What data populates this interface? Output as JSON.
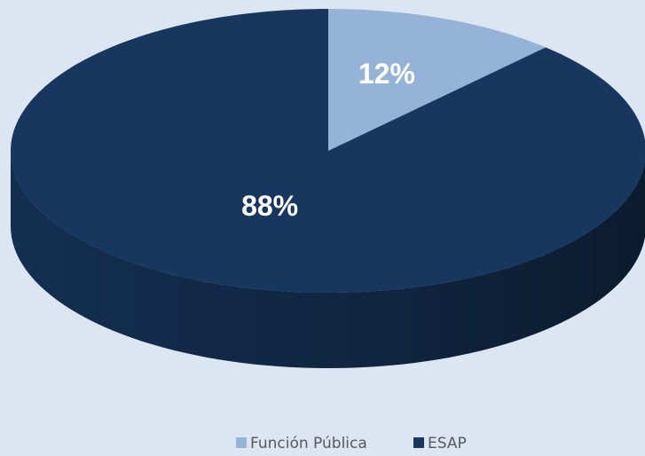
{
  "chart_data": {
    "type": "pie",
    "categories": [
      "Función Pública",
      "ESAP"
    ],
    "values": [
      12,
      88
    ],
    "value_labels": [
      "12%",
      "88%"
    ],
    "colors": [
      "#95b3d7",
      "#17375e"
    ],
    "legend": "bottom"
  }
}
